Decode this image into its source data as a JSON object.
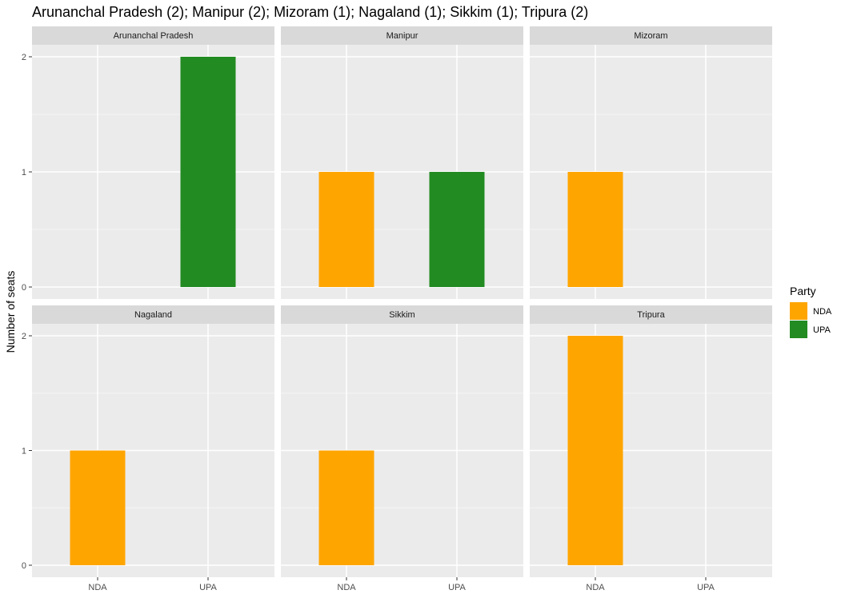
{
  "chart_data": {
    "type": "bar",
    "title": "Arunanchal Pradesh (2); Manipur (2); Mizoram (1); Nagaland (1); Sikkim (1); Tripura (2)",
    "xlabel": "",
    "ylabel": "Number of seats",
    "ylim": [
      0,
      2
    ],
    "yticks": [
      0,
      1,
      2
    ],
    "categories": [
      "NDA",
      "UPA"
    ],
    "grid": true,
    "facet_layout": "2 rows x 3 columns",
    "facets": [
      {
        "name": "Arunanchal Pradesh",
        "values": [
          0,
          2
        ]
      },
      {
        "name": "Manipur",
        "values": [
          1,
          1
        ]
      },
      {
        "name": "Mizoram",
        "values": [
          1,
          0
        ]
      },
      {
        "name": "Nagaland",
        "values": [
          1,
          0
        ]
      },
      {
        "name": "Sikkim",
        "values": [
          1,
          0
        ]
      },
      {
        "name": "Tripura",
        "values": [
          2,
          0
        ]
      }
    ],
    "legend": {
      "title": "Party",
      "placement": "right",
      "entries": [
        {
          "label": "NDA",
          "color": "#FFA500"
        },
        {
          "label": "UPA",
          "color": "#228B22"
        }
      ]
    }
  },
  "colors": {
    "panel_background": "#EBEBEB",
    "strip_background": "#D9D9D9",
    "grid_major": "#FFFFFF",
    "grid_minor": "#F5F5F5"
  }
}
